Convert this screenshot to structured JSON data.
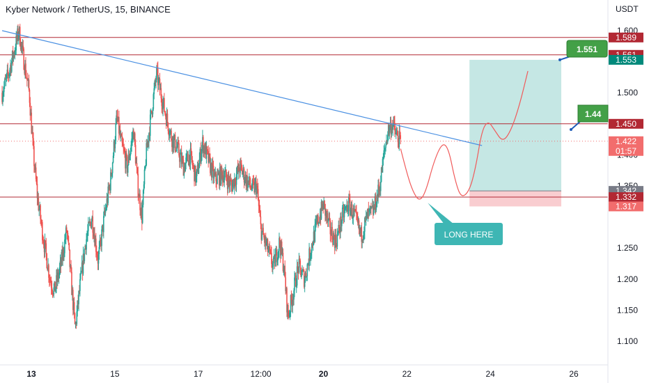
{
  "title": "Kyber Network / TetherUS, 15, BINANCE",
  "currency": "USDT",
  "colors": {
    "up": "#26a69a",
    "down": "#ef5350",
    "trendline": "#4a90e2",
    "level": "#b22833",
    "profit_zone": "#b2dfdb",
    "loss_zone": "#f8c4c8",
    "path": "#f05a5a",
    "callout": "#3eb6b4",
    "target_tag": "#43a047"
  },
  "chart_data": {
    "type": "candlestick",
    "ylim": [
      1.075,
      1.64
    ],
    "y_ticks": [
      "1.600",
      "1.500",
      "1.400",
      "1.350",
      "1.250",
      "1.200",
      "1.150",
      "1.100"
    ],
    "x_ticks": [
      {
        "label": "13",
        "x": 0.0
      },
      {
        "label": "15",
        "x": 2.0
      },
      {
        "label": "17",
        "x": 4.0
      },
      {
        "label": "12:00",
        "x": 5.5
      },
      {
        "label": "20",
        "x": 7.0
      },
      {
        "label": "22",
        "x": 9.0
      },
      {
        "label": "24",
        "x": 11.0
      },
      {
        "label": "26",
        "x": 13.0
      }
    ],
    "xlim": [
      -0.7,
      14.0
    ],
    "price_path": [
      [
        -0.7,
        1.5
      ],
      [
        -0.55,
        1.53
      ],
      [
        -0.4,
        1.57
      ],
      [
        -0.3,
        1.6
      ],
      [
        -0.2,
        1.56
      ],
      [
        -0.05,
        1.5
      ],
      [
        0.05,
        1.4
      ],
      [
        0.15,
        1.33
      ],
      [
        0.3,
        1.26
      ],
      [
        0.45,
        1.2
      ],
      [
        0.55,
        1.18
      ],
      [
        0.7,
        1.22
      ],
      [
        0.85,
        1.28
      ],
      [
        0.95,
        1.2
      ],
      [
        1.05,
        1.12
      ],
      [
        1.15,
        1.18
      ],
      [
        1.3,
        1.26
      ],
      [
        1.45,
        1.3
      ],
      [
        1.6,
        1.23
      ],
      [
        1.75,
        1.3
      ],
      [
        1.9,
        1.36
      ],
      [
        2.05,
        1.46
      ],
      [
        2.15,
        1.42
      ],
      [
        2.3,
        1.38
      ],
      [
        2.45,
        1.44
      ],
      [
        2.55,
        1.35
      ],
      [
        2.65,
        1.3
      ],
      [
        2.75,
        1.4
      ],
      [
        2.9,
        1.48
      ],
      [
        3.0,
        1.53
      ],
      [
        3.1,
        1.5
      ],
      [
        3.2,
        1.47
      ],
      [
        3.35,
        1.43
      ],
      [
        3.5,
        1.41
      ],
      [
        3.65,
        1.38
      ],
      [
        3.8,
        1.4
      ],
      [
        3.95,
        1.36
      ],
      [
        4.1,
        1.42
      ],
      [
        4.25,
        1.39
      ],
      [
        4.4,
        1.36
      ],
      [
        4.6,
        1.37
      ],
      [
        4.8,
        1.35
      ],
      [
        5.0,
        1.38
      ],
      [
        5.15,
        1.36
      ],
      [
        5.3,
        1.345
      ],
      [
        5.4,
        1.35
      ],
      [
        5.5,
        1.28
      ],
      [
        5.65,
        1.25
      ],
      [
        5.8,
        1.22
      ],
      [
        5.95,
        1.26
      ],
      [
        6.05,
        1.22
      ],
      [
        6.15,
        1.14
      ],
      [
        6.25,
        1.17
      ],
      [
        6.4,
        1.22
      ],
      [
        6.55,
        1.2
      ],
      [
        6.7,
        1.25
      ],
      [
        6.85,
        1.29
      ],
      [
        7.0,
        1.32
      ],
      [
        7.15,
        1.28
      ],
      [
        7.3,
        1.26
      ],
      [
        7.45,
        1.3
      ],
      [
        7.6,
        1.32
      ],
      [
        7.75,
        1.3
      ],
      [
        7.9,
        1.27
      ],
      [
        8.05,
        1.3
      ],
      [
        8.2,
        1.31
      ],
      [
        8.35,
        1.35
      ],
      [
        8.45,
        1.4
      ],
      [
        8.55,
        1.44
      ],
      [
        8.65,
        1.45
      ],
      [
        8.75,
        1.43
      ],
      [
        8.85,
        1.42
      ]
    ],
    "levels": [
      {
        "value": 1.589,
        "label": "1.589",
        "color": "#b22833"
      },
      {
        "value": 1.561,
        "label": "1.561",
        "color": "#b22833"
      },
      {
        "value": 1.45,
        "label": "1.450",
        "color": "#b22833"
      },
      {
        "value": 1.332,
        "label": "1.332",
        "color": "#b22833"
      }
    ],
    "price_tags": [
      {
        "value": 1.589,
        "label": "1.589",
        "color": "#b22833"
      },
      {
        "value": 1.561,
        "label": "1.561",
        "color": "#b22833"
      },
      {
        "value": 1.553,
        "label": "1.553",
        "color": "#00897b"
      },
      {
        "value": 1.45,
        "label": "1.450",
        "color": "#b22833"
      },
      {
        "value": 1.422,
        "label": "1.422",
        "sub": "01:57",
        "color": "#f26d6d"
      },
      {
        "value": 1.342,
        "label": "1.342",
        "color": "#787b86"
      },
      {
        "value": 1.332,
        "label": "1.332",
        "color": "#b22833"
      },
      {
        "value": 1.317,
        "label": "1.317",
        "color": "#f26d6d"
      }
    ],
    "current_price": 1.422,
    "trendline": [
      [
        -0.7,
        1.6
      ],
      [
        10.8,
        1.415
      ]
    ],
    "position": {
      "x0": 10.5,
      "x1": 12.7,
      "entry": 1.342,
      "target": 1.553,
      "stop": 1.317
    },
    "projection": [
      [
        8.85,
        1.41
      ],
      [
        9.0,
        1.37
      ],
      [
        9.15,
        1.34
      ],
      [
        9.3,
        1.325
      ],
      [
        9.45,
        1.34
      ],
      [
        9.65,
        1.39
      ],
      [
        9.85,
        1.42
      ],
      [
        10.0,
        1.41
      ],
      [
        10.15,
        1.36
      ],
      [
        10.3,
        1.33
      ],
      [
        10.5,
        1.342
      ],
      [
        10.65,
        1.38
      ],
      [
        10.8,
        1.44
      ],
      [
        10.95,
        1.455
      ],
      [
        11.1,
        1.44
      ],
      [
        11.3,
        1.42
      ],
      [
        11.5,
        1.44
      ],
      [
        11.7,
        1.48
      ],
      [
        11.9,
        1.535
      ]
    ],
    "annotations": [
      {
        "text": "LONG HERE",
        "at": [
          9.5,
          1.325
        ]
      },
      {
        "text": "1.551",
        "at": [
          11.9,
          1.553
        ]
      },
      {
        "text": "1.44",
        "at": [
          13.0,
          1.45
        ]
      }
    ]
  }
}
